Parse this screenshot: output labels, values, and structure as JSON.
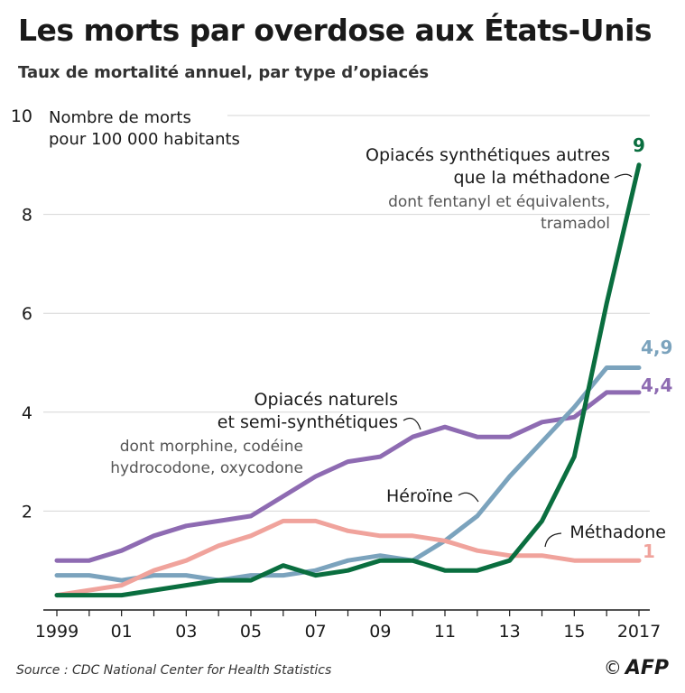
{
  "header": {
    "title": "Les morts par overdose aux États-Unis",
    "subtitle": "Taux de mortalité annuel, par type d’opiacés"
  },
  "footer": {
    "source": "Source : CDC National Center for Health Statistics",
    "credit_symbol": "©",
    "credit": "AFP"
  },
  "chart_data": {
    "type": "line",
    "ylabel_lines": [
      "Nombre de morts",
      "pour 100 000 habitants"
    ],
    "ylim": [
      0,
      10
    ],
    "yticks": [
      2,
      4,
      6,
      8,
      10
    ],
    "ytick_labels": [
      "2",
      "4",
      "6",
      "8",
      "10"
    ],
    "x": [
      1999,
      2000,
      2001,
      2002,
      2003,
      2004,
      2005,
      2006,
      2007,
      2008,
      2009,
      2010,
      2011,
      2012,
      2013,
      2014,
      2015,
      2016,
      2017
    ],
    "xticks": [
      1999,
      2001,
      2003,
      2005,
      2007,
      2009,
      2011,
      2013,
      2015,
      2017
    ],
    "xtick_labels": [
      "1999",
      "01",
      "03",
      "05",
      "07",
      "09",
      "11",
      "13",
      "15",
      "2017"
    ],
    "grid": true,
    "series": [
      {
        "id": "semi",
        "name_lines": [
          "Opiacés naturels",
          "et semi-synthétiques"
        ],
        "note_lines": [
          "dont morphine, codéine",
          "hydrocodone, oxycodone"
        ],
        "color": "#8e6bb2",
        "end_label": "4,4",
        "values": [
          1.0,
          1.0,
          1.2,
          1.5,
          1.7,
          1.8,
          1.9,
          2.3,
          2.7,
          3.0,
          3.1,
          3.5,
          3.7,
          3.5,
          3.5,
          3.8,
          3.9,
          4.4,
          4.4
        ]
      },
      {
        "id": "heroin",
        "name_lines": [
          "Héroïne"
        ],
        "color": "#7ba3bd",
        "end_label": "4,9",
        "values": [
          0.7,
          0.7,
          0.6,
          0.7,
          0.7,
          0.6,
          0.7,
          0.7,
          0.8,
          1.0,
          1.1,
          1.0,
          1.4,
          1.9,
          2.7,
          3.4,
          4.1,
          4.9,
          4.9
        ]
      },
      {
        "id": "methadone",
        "name_lines": [
          "Méthadone"
        ],
        "color": "#f0a39c",
        "end_label": "1",
        "values": [
          0.3,
          0.4,
          0.5,
          0.8,
          1.0,
          1.3,
          1.5,
          1.8,
          1.8,
          1.6,
          1.5,
          1.5,
          1.4,
          1.2,
          1.1,
          1.1,
          1.0,
          1.0,
          1.0
        ]
      },
      {
        "id": "synth",
        "name_lines": [
          "Opiacés synthétiques autres",
          "que la méthadone"
        ],
        "note_lines": [
          "dont fentanyl et équivalents,",
          "tramadol"
        ],
        "color": "#0a6e3f",
        "end_label": "9",
        "values": [
          0.3,
          0.3,
          0.3,
          0.4,
          0.5,
          0.6,
          0.6,
          0.9,
          0.7,
          0.8,
          1.0,
          1.0,
          0.8,
          0.8,
          1.0,
          1.8,
          3.1,
          6.2,
          9.0
        ]
      }
    ]
  }
}
